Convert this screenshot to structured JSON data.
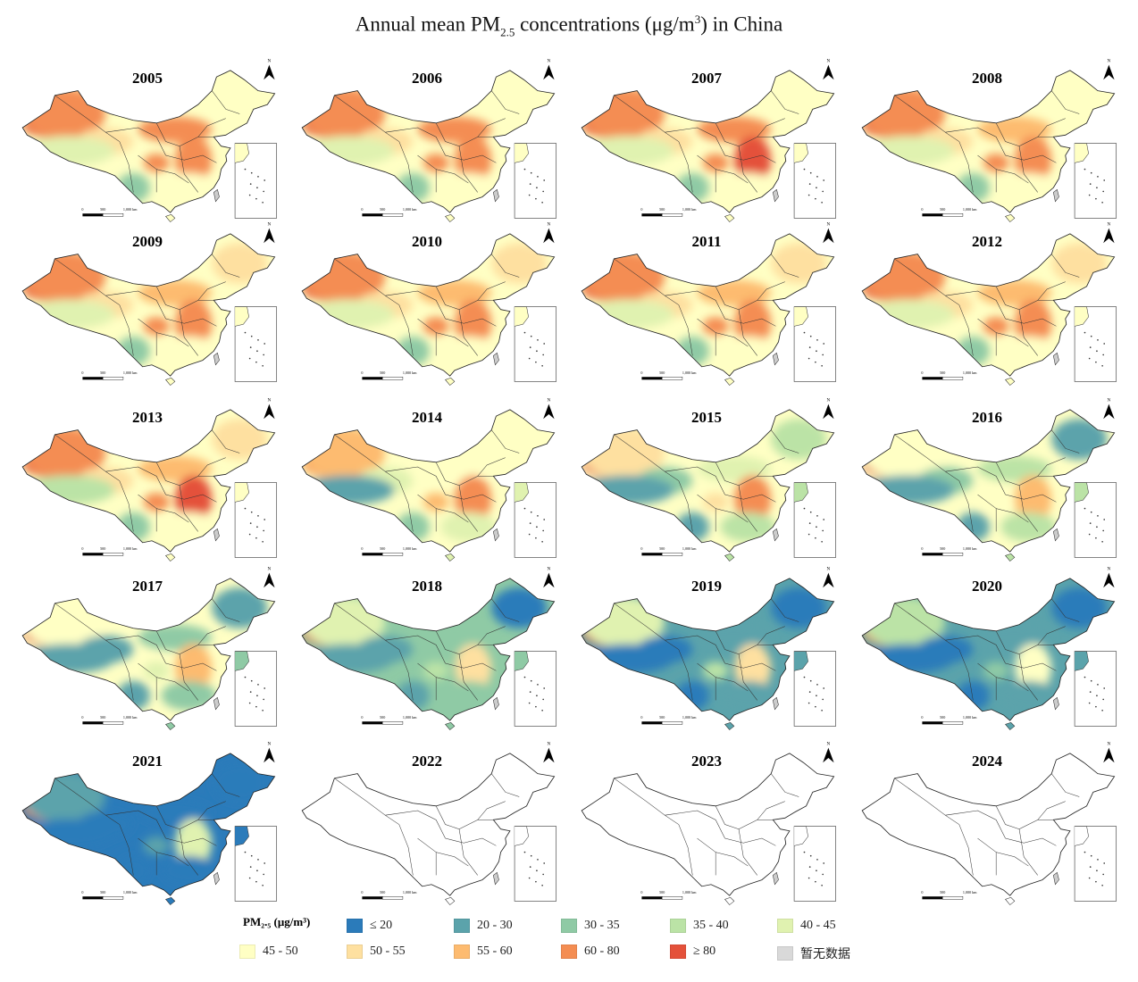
{
  "title": {
    "prefix": "Annual mean PM",
    "sub": "2.5",
    "mid": " concentrations (μg/m",
    "sup": "3",
    "suffix": ") in China"
  },
  "map_labels": {
    "north": "N",
    "scale_0": "0",
    "scale_500": "500",
    "scale_1000": "1,000 km"
  },
  "region_order": [
    "taklamakan",
    "xinjiang",
    "qinghai",
    "tibet",
    "yunnan",
    "sichuan",
    "inner_mongolia",
    "north_china_plain",
    "northeast",
    "southeast"
  ],
  "panels": [
    {
      "year": "2005",
      "levels": [
        9,
        8,
        6,
        4,
        2,
        8,
        8,
        8,
        5,
        5
      ]
    },
    {
      "year": "2006",
      "levels": [
        9,
        8,
        6,
        4,
        2,
        8,
        8,
        8,
        5,
        5
      ]
    },
    {
      "year": "2007",
      "levels": [
        9,
        8,
        6,
        4,
        2,
        8,
        8,
        9,
        5,
        5
      ]
    },
    {
      "year": "2008",
      "levels": [
        9,
        8,
        6,
        4,
        2,
        8,
        7,
        8,
        5,
        5
      ]
    },
    {
      "year": "2009",
      "levels": [
        9,
        8,
        6,
        4,
        2,
        8,
        7,
        8,
        6,
        5
      ]
    },
    {
      "year": "2010",
      "levels": [
        9,
        8,
        6,
        4,
        2,
        8,
        7,
        8,
        6,
        5
      ]
    },
    {
      "year": "2011",
      "levels": [
        9,
        8,
        6,
        4,
        2,
        8,
        7,
        8,
        6,
        5
      ]
    },
    {
      "year": "2012",
      "levels": [
        9,
        8,
        6,
        4,
        2,
        8,
        7,
        8,
        6,
        5
      ]
    },
    {
      "year": "2013",
      "levels": [
        9,
        8,
        6,
        3,
        2,
        8,
        7,
        9,
        6,
        5
      ]
    },
    {
      "year": "2014",
      "levels": [
        8,
        7,
        4,
        1,
        2,
        7,
        5,
        8,
        5,
        4
      ]
    },
    {
      "year": "2015",
      "levels": [
        9,
        6,
        2,
        1,
        1,
        6,
        4,
        8,
        3,
        3
      ]
    },
    {
      "year": "2016",
      "levels": [
        9,
        5,
        2,
        1,
        1,
        5,
        3,
        7,
        1,
        3
      ]
    },
    {
      "year": "2017",
      "levels": [
        9,
        5,
        1,
        1,
        1,
        4,
        2,
        7,
        1,
        2
      ]
    },
    {
      "year": "2018",
      "levels": [
        9,
        4,
        1,
        1,
        1,
        3,
        2,
        6,
        0,
        2
      ]
    },
    {
      "year": "2019",
      "levels": [
        9,
        4,
        0,
        0,
        0,
        3,
        1,
        6,
        0,
        1
      ]
    },
    {
      "year": "2020",
      "levels": [
        8,
        3,
        0,
        0,
        0,
        2,
        1,
        5,
        0,
        1
      ]
    },
    {
      "year": "2021",
      "levels": [
        8,
        1,
        0,
        0,
        0,
        1,
        0,
        4,
        0,
        0
      ]
    },
    {
      "year": "2022",
      "levels": null
    },
    {
      "year": "2023",
      "levels": null
    },
    {
      "year": "2024",
      "levels": null
    }
  ],
  "legend": {
    "title": "PM₂.₅ (μg/m³)",
    "items": [
      {
        "label": "≤ 20",
        "color": "#2b7bba"
      },
      {
        "label": "20 - 30",
        "color": "#5ba3ab"
      },
      {
        "label": "30 - 35",
        "color": "#8fcaa5"
      },
      {
        "label": "35 - 40",
        "color": "#bbe3a6"
      },
      {
        "label": "40 - 45",
        "color": "#e0f2b0"
      },
      {
        "label": "45 - 50",
        "color": "#ffffc4"
      },
      {
        "label": "50 - 55",
        "color": "#fee0a0"
      },
      {
        "label": "55 - 60",
        "color": "#fdbb70"
      },
      {
        "label": "60 - 80",
        "color": "#f48d52"
      },
      {
        "label": "≥ 80",
        "color": "#e4513a"
      },
      {
        "label": "暂无数据",
        "color": "#d9d9d9"
      }
    ]
  }
}
